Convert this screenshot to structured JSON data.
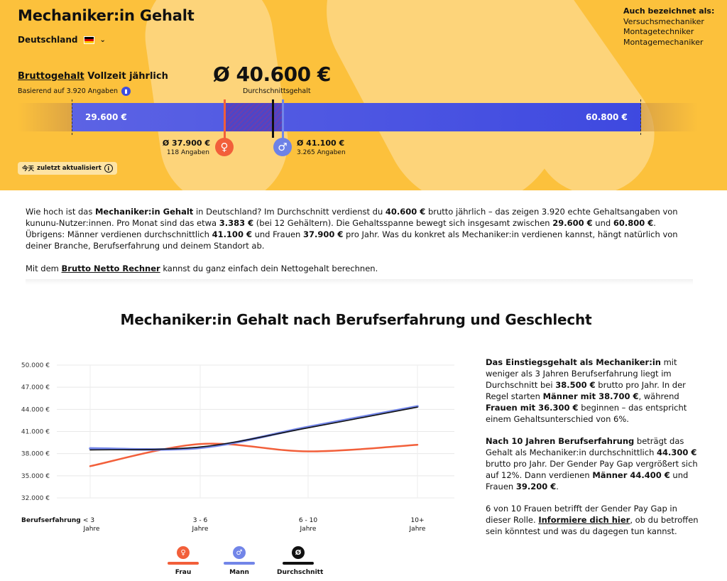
{
  "header": {
    "title": "Mechaniker:in Gehalt",
    "country": "Deutschland",
    "aka_heading": "Auch bezeichnet als:",
    "aka": [
      "Versuchsmechaniker",
      "Montagetechniker",
      "Montagemechaniker"
    ]
  },
  "salary": {
    "type_link": "Bruttogehalt",
    "type_rest": " Vollzeit jährlich",
    "based_on": "Basierend auf 3.920 Angaben",
    "average": "Ø 40.600 €",
    "average_label": "Durchschnittsgehalt",
    "min": "29.600 €",
    "max": "60.800 €",
    "female_value": "Ø 37.900 €",
    "female_count": "118 Angaben",
    "male_value": "Ø 41.100 €",
    "male_count": "3.265 Angaben",
    "updated_prefix": "今天",
    "updated_text": " zuletzt aktualisiert"
  },
  "intro": {
    "p1_parts": [
      "Wie hoch ist das ",
      "Mechaniker:in Gehalt",
      " in Deutschland? Im Durchschnitt verdienst du ",
      "40.600 €",
      " brutto jährlich – das zeigen 3.920 echte Gehaltsangaben von kununu-Nutzer:innen. Pro Monat sind das etwa ",
      "3.383 €",
      " (bei 12 Gehältern). Die Gehaltsspanne bewegt sich insgesamt zwischen ",
      "29.600 €",
      " und ",
      "60.800 €",
      ". Übrigens: Männer verdienen durchschnittlich ",
      "41.100 €",
      " und Frauen ",
      "37.900 €",
      " pro Jahr. Was du konkret als Mechaniker:in verdienen kannst, hängt natürlich von deiner Branche, Berufserfahrung und deinem Standort ab."
    ],
    "p2_before": "Mit dem ",
    "p2_link": "Brutto Netto Rechner",
    "p2_after": " kannst du ganz einfach dein Nettogehalt berechnen."
  },
  "section": {
    "title": "Mechaniker:in Gehalt nach Berufserfahrung und Geschlecht",
    "side_p1": [
      "Das Einstiegsgehalt als Mechaniker:in",
      " mit weniger als 3 Jahren Berufserfahrung liegt im Durchschnitt bei ",
      "38.500 €",
      " brutto pro Jahr. In der Regel starten ",
      "Männer mit 38.700 €",
      ", während ",
      "Frauen mit 36.300 €",
      " beginnen – das entspricht einem Gehaltsunterschied von 6%."
    ],
    "side_p2": [
      "Nach 10 Jahren Berufserfahrung",
      " beträgt das Gehalt als Mechaniker:in durchschnittlich ",
      "44.300 €",
      " brutto pro Jahr. Der Gender Pay Gap vergrößert sich auf 12%. Dann verdienen ",
      "Männer 44.400 €",
      " und Frauen ",
      "39.200 €",
      "."
    ],
    "side_p3": [
      "6 von 10 Frauen betrifft der Gender Pay Gap in dieser Rolle. ",
      "Informiere dich hier",
      ", ob du betroffen sein könntest und was du dagegen tun kannst."
    ]
  },
  "chart_data": {
    "type": "line",
    "xlabel": "Berufserfahrung",
    "categories": [
      "< 3 Jahre",
      "3 - 6 Jahre",
      "6 - 10 Jahre",
      "10+ Jahre"
    ],
    "y_ticks": [
      "50.000 €",
      "47.000 €",
      "44.000 €",
      "41.000 €",
      "38.000 €",
      "35.000 €",
      "32.000 €"
    ],
    "ylim": [
      32000,
      50000
    ],
    "series": [
      {
        "name": "Frau",
        "values": [
          36300,
          39300,
          38300,
          39200
        ],
        "color": "#f25f3a",
        "icon": "♀"
      },
      {
        "name": "Mann",
        "values": [
          38700,
          38800,
          41600,
          44400
        ],
        "color": "#7285e8",
        "icon": "♂"
      },
      {
        "name": "Durchschnitt",
        "values": [
          38500,
          38900,
          41500,
          44300
        ],
        "color": "#111111",
        "icon": "Ø"
      }
    ]
  }
}
